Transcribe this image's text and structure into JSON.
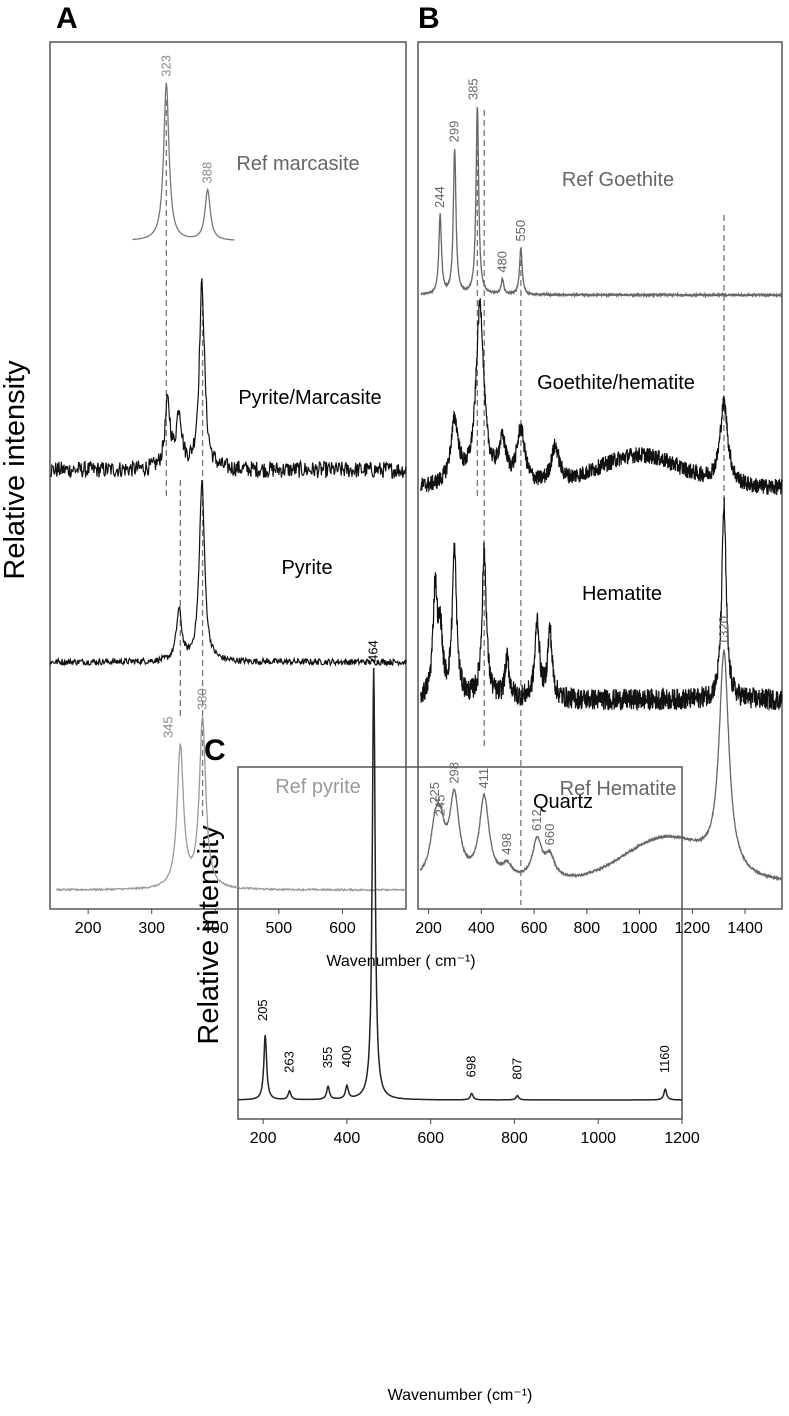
{
  "chart_data": [
    {
      "panel": "A",
      "type": "line",
      "ylabel": "Relative intensity",
      "xlim": [
        140,
        700
      ],
      "xticks": [
        "200",
        "300",
        "400",
        "500",
        "600"
      ],
      "yticks": "none",
      "grid": false,
      "reference_lines_x": [
        323,
        345,
        380
      ],
      "series": [
        {
          "name": "Ref marcasite",
          "color": "#777777",
          "x_range": [
            270,
            430
          ],
          "peaks": [
            {
              "x": 323,
              "label": "323",
              "height": 1.0
            },
            {
              "x": 388,
              "label": "388",
              "height": 0.32
            }
          ]
        },
        {
          "name": "Pyrite/Marcasite",
          "color": "#111111",
          "x_range": [
            140,
            700
          ],
          "peaks": [
            {
              "x": 325,
              "height": 0.35
            },
            {
              "x": 343,
              "height": 0.3
            },
            {
              "x": 379,
              "height": 1.0
            }
          ]
        },
        {
          "name": "Pyrite",
          "color": "#111111",
          "x_range": [
            140,
            700
          ],
          "peaks": [
            {
              "x": 343,
              "height": 0.28
            },
            {
              "x": 379,
              "height": 1.0
            }
          ]
        },
        {
          "name": "Ref pyrite",
          "color": "#9a9a9a",
          "x_range": [
            150,
            700
          ],
          "peaks": [
            {
              "x": 345,
              "label": "345",
              "height": 0.83
            },
            {
              "x": 380,
              "label": "380",
              "height": 1.0
            }
          ]
        }
      ]
    },
    {
      "panel": "B",
      "type": "line",
      "xlim": [
        160,
        1540
      ],
      "xticks": [
        "200",
        "400",
        "600",
        "800",
        "1000",
        "1200",
        "1400"
      ],
      "yticks": "none",
      "grid": false,
      "reference_lines_x": [
        385,
        411,
        550,
        1320
      ],
      "series": [
        {
          "name": "Ref Goethite",
          "color": "#666666",
          "x_range": [
            170,
            1540
          ],
          "peaks": [
            {
              "x": 244,
              "label": "244",
              "height": 0.42
            },
            {
              "x": 299,
              "label": "299",
              "height": 0.77
            },
            {
              "x": 385,
              "label": "385",
              "height": 1.0
            },
            {
              "x": 480,
              "label": "480",
              "height": 0.08
            },
            {
              "x": 550,
              "label": "550",
              "height": 0.25
            }
          ]
        },
        {
          "name": "Goethite/hematite",
          "color": "#111111",
          "x_range": [
            170,
            1540
          ],
          "peaks": [
            {
              "x": 299,
              "height": 0.35
            },
            {
              "x": 395,
              "height": 1.0
            },
            {
              "x": 480,
              "height": 0.22
            },
            {
              "x": 550,
              "height": 0.3
            },
            {
              "x": 680,
              "height": 0.2
            },
            {
              "x": 1320,
              "height": 0.45
            }
          ]
        },
        {
          "name": "Hematite",
          "color": "#111111",
          "x_range": [
            170,
            1540
          ],
          "peaks": [
            {
              "x": 225,
              "height": 0.55
            },
            {
              "x": 245,
              "height": 0.3
            },
            {
              "x": 298,
              "height": 0.75
            },
            {
              "x": 411,
              "height": 0.75
            },
            {
              "x": 498,
              "height": 0.2
            },
            {
              "x": 612,
              "height": 0.4
            },
            {
              "x": 660,
              "height": 0.35
            },
            {
              "x": 1320,
              "height": 1.0
            }
          ]
        },
        {
          "name": "Ref Hematite",
          "color": "#666666",
          "x_range": [
            170,
            1540
          ],
          "peaks": [
            {
              "x": 225,
              "label": "225",
              "height": 0.2
            },
            {
              "x": 245,
              "label": "245",
              "height": 0.18
            },
            {
              "x": 298,
              "label": "298",
              "height": 0.37
            },
            {
              "x": 411,
              "label": "411",
              "height": 0.38
            },
            {
              "x": 498,
              "label": "498",
              "height": 0.06
            },
            {
              "x": 612,
              "label": "612",
              "height": 0.18
            },
            {
              "x": 660,
              "label": "660",
              "height": 0.1
            },
            {
              "x": 1320,
              "label": "1320",
              "height": 1.0
            }
          ]
        }
      ]
    },
    {
      "panel": "C",
      "type": "line",
      "ylabel": "Relative intensity",
      "xlabel": "Wavenumber (cm⁻¹)",
      "xlim": [
        140,
        1200
      ],
      "xticks": [
        "200",
        "400",
        "600",
        "800",
        "1000",
        "1200"
      ],
      "yticks": "none",
      "grid": false,
      "series": [
        {
          "name": "Quartz",
          "color": "#222222",
          "x_range": [
            140,
            1200
          ],
          "peaks": [
            {
              "x": 205,
              "label": "205",
              "height": 0.15
            },
            {
              "x": 263,
              "label": "263",
              "height": 0.02
            },
            {
              "x": 355,
              "label": "355",
              "height": 0.03
            },
            {
              "x": 400,
              "label": "400",
              "height": 0.03
            },
            {
              "x": 464,
              "label": "464",
              "height": 1.0
            },
            {
              "x": 698,
              "label": "698",
              "height": 0.015
            },
            {
              "x": 807,
              "label": "807",
              "height": 0.01
            },
            {
              "x": 1160,
              "label": "1160",
              "height": 0.025
            }
          ]
        }
      ]
    }
  ],
  "shared_xlabel_AB": "Wavenumber  ( cm⁻¹)",
  "colors": {
    "dark": "#111111",
    "mid": "#666666",
    "light": "#9a9a9a",
    "dashed": "#777777"
  }
}
